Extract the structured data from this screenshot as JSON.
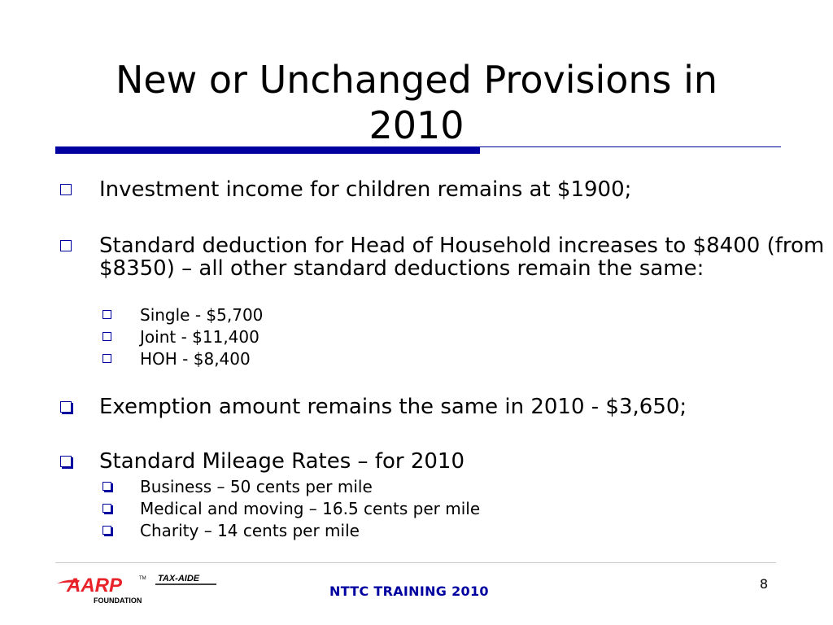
{
  "slide": {
    "title_line1": "New or Unchanged Provisions in",
    "title_line2": "2010",
    "bullets": {
      "b1": "Investment income for children remains at $1900;",
      "b2": "Standard deduction for Head of Household increases to $8400 (from $8350) – all other standard deductions remain the same:",
      "b2_sub": [
        "Single - $5,700",
        "Joint - $11,400",
        "HOH - $8,400"
      ],
      "b3": "Exemption amount remains the same in 2010 - $3,650;",
      "b4": "Standard Mileage Rates – for 2010",
      "b4_sub": [
        "Business – 50 cents per mile",
        "Medical and moving – 16.5 cents per mile",
        "Charity – 14 cents per mile"
      ]
    }
  },
  "footer": {
    "logo_text": "AARP",
    "logo_tm": "TM",
    "logo_subtitle": "FOUNDATION",
    "logo_tagline": "TAX-AIDE",
    "training": "NTTC TRAINING 2010",
    "page_number": "8"
  },
  "colors": {
    "accent": "#0000a0",
    "logo_red": "#e8232a"
  }
}
